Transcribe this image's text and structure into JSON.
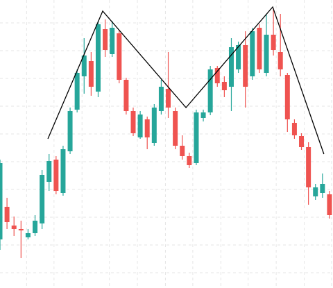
{
  "chart_data": {
    "type": "candlestick",
    "x": [
      0,
      1,
      2,
      3,
      4,
      5,
      6,
      7,
      8,
      9,
      10,
      11,
      12,
      13,
      14,
      15,
      16,
      17,
      18,
      19,
      20,
      21,
      22,
      23,
      24,
      25,
      26,
      27,
      28,
      29,
      30,
      31,
      32,
      33,
      34,
      35,
      36,
      37,
      38,
      39,
      40,
      41,
      42,
      43,
      44,
      45,
      46,
      47
    ],
    "open": [
      70,
      117,
      90,
      85,
      73,
      79,
      93,
      153,
      185,
      137,
      197,
      257,
      305,
      327,
      283,
      373,
      337,
      367,
      300,
      255,
      217,
      243,
      209,
      255,
      287,
      255,
      205,
      190,
      180,
      245,
      253,
      317,
      297,
      290,
      315,
      350,
      305,
      375,
      310,
      365,
      340,
      307,
      238,
      219,
      203,
      132,
      137,
      135
    ],
    "high": [
      185,
      130,
      103,
      97,
      85,
      105,
      170,
      193,
      190,
      205,
      260,
      315,
      360,
      340,
      385,
      387,
      385,
      371,
      303,
      260,
      255,
      247,
      265,
      300,
      340,
      260,
      220,
      195,
      257,
      257,
      320,
      320,
      305,
      360,
      355,
      370,
      375,
      380,
      395,
      403,
      395,
      310,
      243,
      223,
      210,
      150,
      165,
      140
    ],
    "low": [
      55,
      85,
      75,
      43,
      70,
      75,
      85,
      140,
      135,
      133,
      193,
      253,
      280,
      277,
      275,
      333,
      333,
      295,
      250,
      219,
      215,
      200,
      205,
      250,
      245,
      200,
      185,
      173,
      177,
      240,
      249,
      290,
      275,
      255,
      310,
      260,
      300,
      310,
      305,
      335,
      305,
      225,
      215,
      199,
      120,
      127,
      130,
      100
    ],
    "close": [
      180,
      95,
      85,
      83,
      79,
      97,
      163,
      183,
      140,
      200,
      255,
      310,
      335,
      290,
      380,
      343,
      375,
      300,
      255,
      223,
      250,
      217,
      260,
      290,
      260,
      205,
      190,
      177,
      253,
      253,
      315,
      295,
      285,
      347,
      350,
      290,
      370,
      315,
      365,
      343,
      315,
      243,
      220,
      203,
      145,
      145,
      150,
      105
    ],
    "up_color": "#26a69a",
    "down_color": "#ef5350",
    "overlay": {
      "color": "#000000",
      "x": [
        6.83,
        14.65,
        26.53,
        38.9,
        46.2
      ],
      "values": [
        215,
        399,
        260,
        405,
        193
      ]
    },
    "xlim": [
      0,
      47.5
    ],
    "ylim": [
      0,
      415
    ],
    "xticks": [
      3.8,
      7.7,
      11.7,
      15.6,
      19.6,
      23.6,
      27.5,
      31.5,
      35.4,
      39.4,
      43.4,
      47.3
    ],
    "yticks": [
      22,
      62,
      102,
      142,
      182,
      222,
      262,
      302,
      342,
      382
    ],
    "grid": true
  }
}
